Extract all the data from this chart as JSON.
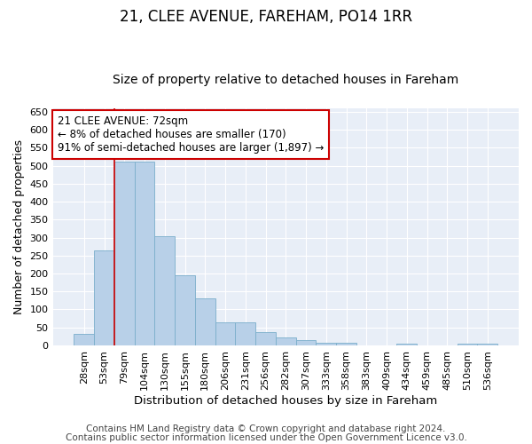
{
  "title1": "21, CLEE AVENUE, FAREHAM, PO14 1RR",
  "title2": "Size of property relative to detached houses in Fareham",
  "xlabel": "Distribution of detached houses by size in Fareham",
  "ylabel": "Number of detached properties",
  "categories": [
    "28sqm",
    "53sqm",
    "79sqm",
    "104sqm",
    "130sqm",
    "155sqm",
    "180sqm",
    "206sqm",
    "231sqm",
    "256sqm",
    "282sqm",
    "307sqm",
    "333sqm",
    "358sqm",
    "383sqm",
    "409sqm",
    "434sqm",
    "459sqm",
    "485sqm",
    "510sqm",
    "536sqm"
  ],
  "values": [
    32,
    263,
    512,
    511,
    303,
    196,
    132,
    65,
    65,
    38,
    22,
    15,
    8,
    8,
    0,
    0,
    5,
    0,
    0,
    5,
    5
  ],
  "bar_color": "#b8d0e8",
  "bar_edge_color": "#7aaecb",
  "bg_color": "#e8eef7",
  "grid_color": "#ffffff",
  "vline_color": "#cc0000",
  "vline_x_index": 2,
  "annotation_text": "21 CLEE AVENUE: 72sqm\n← 8% of detached houses are smaller (170)\n91% of semi-detached houses are larger (1,897) →",
  "annotation_box_color": "#cc0000",
  "footer1": "Contains HM Land Registry data © Crown copyright and database right 2024.",
  "footer2": "Contains public sector information licensed under the Open Government Licence v3.0.",
  "ylim": [
    0,
    660
  ],
  "yticks": [
    0,
    50,
    100,
    150,
    200,
    250,
    300,
    350,
    400,
    450,
    500,
    550,
    600,
    650
  ],
  "title1_fontsize": 12,
  "title2_fontsize": 10,
  "xlabel_fontsize": 9.5,
  "ylabel_fontsize": 9,
  "tick_fontsize": 8,
  "footer_fontsize": 7.5,
  "annotation_fontsize": 8.5
}
